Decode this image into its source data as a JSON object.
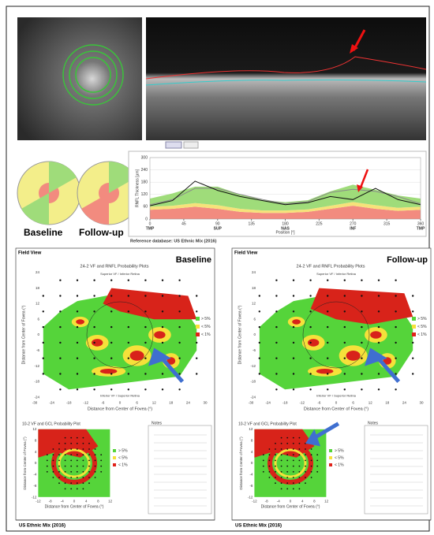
{
  "header": {
    "baseline_label": "Baseline",
    "followup_label": "Follow-up",
    "reference": "Reference database: US Ethnic Mix (2016)"
  },
  "chart_data": {
    "type": "line",
    "x": [
      0,
      30,
      60,
      90,
      120,
      150,
      180,
      210,
      240,
      270,
      300,
      330,
      360
    ],
    "xlim": [
      0,
      360
    ],
    "xticks": [
      0,
      45,
      90,
      135,
      180,
      225,
      270,
      315,
      360
    ],
    "xticks2": [
      {
        "value": 0,
        "label": "TMP"
      },
      {
        "value": 90,
        "label": "SUP"
      },
      {
        "value": 180,
        "label": "NAS"
      },
      {
        "value": 270,
        "label": "INF"
      },
      {
        "value": 360,
        "label": "TMP"
      }
    ],
    "ylim": [
      0,
      300
    ],
    "yticks": [
      0,
      60,
      120,
      180,
      240,
      300
    ],
    "xlabel": "Position [°]",
    "ylabel": "RNFL Thickness [µm]",
    "bands": [
      {
        "color": "#f28b7f",
        "values": [
          45,
          50,
          60,
          50,
          35,
          30,
          30,
          35,
          50,
          65,
          50,
          40,
          45
        ]
      },
      {
        "color": "#f6e27a",
        "values": [
          15,
          15,
          18,
          18,
          15,
          12,
          12,
          12,
          15,
          18,
          18,
          15,
          15
        ]
      },
      {
        "color": "#9fdc7a",
        "values": [
          40,
          60,
          80,
          90,
          70,
          50,
          40,
          45,
          70,
          85,
          75,
          60,
          40
        ]
      }
    ],
    "series": [
      {
        "color": "#8a8a8a",
        "values": [
          70,
          95,
          150,
          150,
          120,
          95,
          75,
          85,
          130,
          145,
          135,
          110,
          75
        ]
      },
      {
        "color": "#111111",
        "values": [
          65,
          90,
          185,
          140,
          110,
          90,
          70,
          80,
          110,
          95,
          150,
          95,
          70
        ]
      }
    ]
  },
  "field_view": {
    "axes": {
      "x_ticks": [
        -30,
        -24,
        -18,
        -12,
        -6,
        0,
        6,
        12,
        18,
        24,
        30
      ],
      "y_ticks": [
        24,
        18,
        12,
        6,
        0,
        -6,
        -12,
        -18,
        -24
      ],
      "small_ticks": [
        -12,
        -8,
        -4,
        0,
        4,
        8,
        12
      ],
      "x_label": "Distance from Center of Fovea (°)",
      "y_label": "Distance from Center of Fovea (°)"
    },
    "legend": [
      "> 5%",
      "< 5%",
      "< 1%"
    ],
    "legend_colors": [
      "#55d43a",
      "#f5e13a",
      "#e0231a"
    ],
    "panels": [
      {
        "section": "Field View",
        "eye_label": "Baseline",
        "plot_title": "24-2 VF and RNFL Probability Plots",
        "top_label": "Superior VF / Inferior Retina",
        "bottom_label": "Inferior VF / Superior Retina",
        "small_title": "10-2 VF and GCL Probability Plot",
        "notes": "Notes",
        "database": "US Ethnic Mix (2016)"
      },
      {
        "section": "Field View",
        "eye_label": "Follow-up",
        "plot_title": "24-2 VF and RNFL Probability Plots",
        "top_label": "Superior VF / Inferior Retina",
        "bottom_label": "Inferior VF / Superior Retina",
        "small_title": "10-2 VF and GCL Probability Plot",
        "notes": "Notes",
        "database": "US Ethnic Mix (2016)"
      }
    ]
  }
}
